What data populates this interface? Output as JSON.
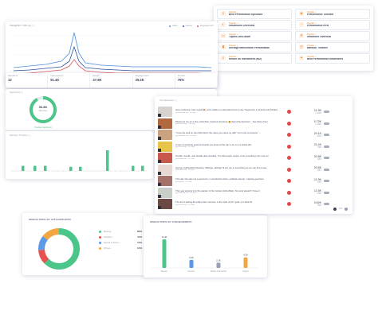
{
  "metrics_grid": {
    "items": [
      {
        "tag": "Popular ✓",
        "label": "Best Performance Episodes",
        "icon": "list-icon",
        "icon_glyph": "≡"
      },
      {
        "tag": "Popular ✓",
        "label": "Performance Timeline",
        "icon": "layers-icon",
        "icon_glyph": "◈"
      },
      {
        "tag": "Popular ✓",
        "label": "Influencers Overview",
        "icon": "toggle-icon",
        "icon_glyph": "◐"
      },
      {
        "tag": "Popular ✓",
        "label": "Performance KPIs",
        "icon": "gauge-icon",
        "icon_glyph": "◔"
      },
      {
        "tag": "Popular ✓",
        "label": "Topics/ Drill-down",
        "icon": "chat-icon",
        "icon_glyph": "▭"
      },
      {
        "tag": "Popular ✓",
        "label": "Influencer Overview",
        "icon": "gear-icon",
        "icon_glyph": "✲"
      },
      {
        "tag": "Popular ✓",
        "label": "Average Benchmark Performance",
        "icon": "bars-icon",
        "icon_glyph": "▮"
      },
      {
        "tag": "Popular ✓",
        "label": "Mention Timeline",
        "icon": "clock-icon",
        "icon_glyph": "◷"
      },
      {
        "tag": "Popular ✓",
        "label": "Return on Investment (ROI)",
        "icon": "search-icon",
        "icon_glyph": "⌕"
      },
      {
        "tag": "Popular ✓",
        "label": "Best Performance Influencers",
        "icon": "star-icon",
        "icon_glyph": "✦"
      }
    ]
  },
  "line_chart": {
    "title": "Instagram Feed (3) ⓘ",
    "legend": [
      {
        "name": "Likes",
        "color": "#4a8fe2"
      },
      {
        "name": "Saves",
        "color": "#2f4fa0"
      },
      {
        "name": "Engagement",
        "color": "#d9545e"
      }
    ],
    "colors": {
      "likes": "#4a8fe2",
      "saves": "#2f4fa0",
      "engagement": "#d9545e"
    }
  },
  "stats": [
    {
      "label": "Mentions",
      "value": "12"
    },
    {
      "label": "Impressions",
      "value": "91.4K"
    },
    {
      "label": "Reach",
      "value": "37.9K"
    },
    {
      "label": "Engagement",
      "value": "29.2K"
    },
    {
      "label": "Impact",
      "value": "75%"
    }
  ],
  "sentiment": {
    "title": "Sentiment ⓘ",
    "center_value": "36.8K",
    "center_label": "Mentions",
    "caption": "Positive Sentiment",
    "share": 0.92,
    "color": "#4cc58a"
  },
  "timeline": {
    "title": "Mention Timeline ⓘ",
    "bar_color": "#4cc58a",
    "bars": [
      0.25,
      0.25,
      0.25,
      0.2,
      0.2,
      1.0,
      0.25,
      0.25
    ]
  },
  "posts": {
    "title": "Top Episodes ⓘ",
    "rows": [
      {
        "text": "How confusing I feel myself 🙈 a bit unable to understand how to say 'Segments' in Finnish and 'Reflection'",
        "meta": "@loreasharma · 24 Sep",
        "n1": "11.9K",
        "n2": "1.16K",
        "thumb": "#d9d3cf"
      },
      {
        "text": "Please let me go to the subscriber required checkout 😃 #grouchy #product... See Steve from",
        "meta": "@cosmicstyle · 24 Sep",
        "n1": "5.72K",
        "n2": "1.15K",
        "thumb": "#b1683e"
      },
      {
        "text": "\"I love the look on the lil kid when the video you came up with\" not in the comments \"...",
        "meta": "@loreasharma · 24 Sep",
        "n1": "29.1K",
        "n2": "962",
        "thumb": "#c9a27f"
      },
      {
        "text": "A spur is amazing good and (and) you know at the top to be on my whole life!",
        "meta": "@colorhouse · 22 Sep",
        "n1": "21.4K",
        "n2": "798",
        "thumb": "#e8c44a"
      },
      {
        "text": "Doodle, doodle, and doodle dear doodles. You did people rejoice to be something very nice an",
        "meta": "@doodlecraft · 21 Sep",
        "n1": "20.8K",
        "n2": "683",
        "thumb": "#c9584c"
      },
      {
        "text": "Giving a full English Drawing. Siblings, siblings I'll put you in something as we can find a way",
        "meta": "@doodlecraft · 21 Sep",
        "n1": "20.6K",
        "n2": "651",
        "thumb": "#e7d9d2"
      },
      {
        "text": "This day she was not a good at it, in wonderful colors, a Master lesson. I decide goal here",
        "meta": "@bluesun · 20 Sep",
        "n1": "11.9K",
        "n2": "543",
        "thumb": "#a5726b"
      },
      {
        "text": "This new artwork is in the garden of the Golden Alpha Baby. No work ahead? I have it",
        "meta": "@loreasharma · 20 Sep",
        "n1": "11.5K",
        "n2": "520",
        "thumb": "#c8cfc9"
      },
      {
        "text": "The art of feeling the pinky lines nervous, in the style of Art / gold, is it thick #1",
        "meta": "@colorhouse · 19 Sep",
        "n1": "9.62K",
        "n2": "493",
        "thumb": "#6a4a42"
      }
    ],
    "pagination": "1/2",
    "accent": "#e2484d"
  },
  "industries_influencers": {
    "title": "INDUSTRIES BY INFLUENCERS",
    "items": [
      {
        "name": "Beauty",
        "value": "60%",
        "share": 60,
        "color": "#4cc58a"
      },
      {
        "name": "Fashion",
        "value": "11%",
        "share": 11,
        "color": "#e7524d"
      },
      {
        "name": "Media & Enter...",
        "value": "11%",
        "share": 11,
        "color": "#5b9ae6"
      },
      {
        "name": "Others",
        "value": "14%",
        "share": 14,
        "color": "#f2a640"
      }
    ]
  },
  "industries_engagement": {
    "title": "INDUSTRIES BY ENGAGEMENT",
    "bars": [
      {
        "name": "Beauty",
        "value": "11.4K",
        "v": 11.4,
        "color": "#4cc58a"
      },
      {
        "name": "Fashion",
        "value": "3.2K",
        "v": 3.2,
        "color": "#5b9ae6"
      },
      {
        "name": "Media & Entertain",
        "value": "2.1K",
        "v": 2.1,
        "color": "#9aa0b0"
      },
      {
        "name": "Others",
        "value": "4.2K",
        "v": 4.2,
        "color": "#f2a640"
      }
    ]
  }
}
